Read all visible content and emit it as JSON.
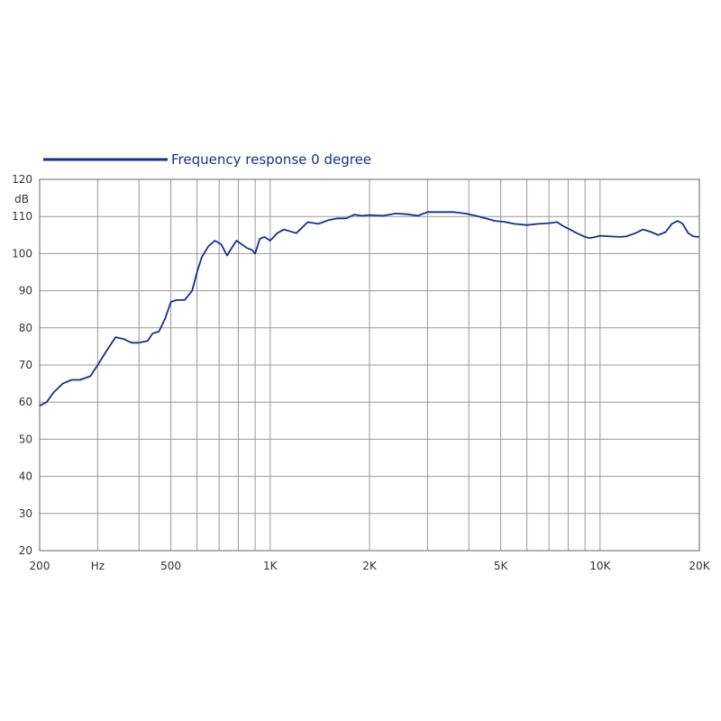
{
  "chart_data": {
    "type": "line",
    "legend_position": "top-left",
    "x_scale": "log",
    "xlim": [
      200,
      20000
    ],
    "ylim": [
      20,
      120
    ],
    "y_unit_label": "dB",
    "x_unit_label": "Hz",
    "grid": true,
    "x_ticks": [
      {
        "value": 200,
        "label": "200"
      },
      {
        "value": 300,
        "label": "Hz"
      },
      {
        "value": 500,
        "label": "500"
      },
      {
        "value": 1000,
        "label": "1K"
      },
      {
        "value": 2000,
        "label": "2K"
      },
      {
        "value": 5000,
        "label": "5K"
      },
      {
        "value": 10000,
        "label": "10K"
      },
      {
        "value": 20000,
        "label": "20K"
      }
    ],
    "x_gridlines": [
      200,
      300,
      400,
      500,
      600,
      700,
      800,
      900,
      1000,
      2000,
      3000,
      4000,
      5000,
      6000,
      7000,
      8000,
      9000,
      10000,
      20000
    ],
    "y_ticks": [
      20,
      30,
      40,
      50,
      60,
      70,
      80,
      90,
      100,
      110,
      120
    ],
    "series": [
      {
        "name": "Frequency response 0 degree",
        "color": "#1a2e8c",
        "points": [
          [
            200,
            59
          ],
          [
            210,
            60
          ],
          [
            220,
            62.5
          ],
          [
            235,
            65
          ],
          [
            250,
            66
          ],
          [
            265,
            66
          ],
          [
            285,
            67
          ],
          [
            300,
            70
          ],
          [
            320,
            74
          ],
          [
            340,
            77.5
          ],
          [
            360,
            77
          ],
          [
            380,
            76
          ],
          [
            400,
            76
          ],
          [
            425,
            76.5
          ],
          [
            440,
            78.5
          ],
          [
            460,
            79
          ],
          [
            480,
            82.5
          ],
          [
            500,
            87
          ],
          [
            520,
            87.5
          ],
          [
            550,
            87.5
          ],
          [
            580,
            90
          ],
          [
            600,
            95
          ],
          [
            620,
            99
          ],
          [
            650,
            102
          ],
          [
            680,
            103.5
          ],
          [
            710,
            102.5
          ],
          [
            740,
            99.5
          ],
          [
            770,
            102
          ],
          [
            790,
            103.5
          ],
          [
            820,
            102.5
          ],
          [
            850,
            101.5
          ],
          [
            880,
            101
          ],
          [
            900,
            100
          ],
          [
            930,
            104
          ],
          [
            960,
            104.5
          ],
          [
            1000,
            103.5
          ],
          [
            1050,
            105.5
          ],
          [
            1100,
            106.5
          ],
          [
            1150,
            106
          ],
          [
            1200,
            105.5
          ],
          [
            1300,
            108.5
          ],
          [
            1400,
            108
          ],
          [
            1500,
            109
          ],
          [
            1600,
            109.5
          ],
          [
            1700,
            109.5
          ],
          [
            1800,
            110.5
          ],
          [
            1900,
            110.2
          ],
          [
            2000,
            110.4
          ],
          [
            2200,
            110.2
          ],
          [
            2400,
            110.8
          ],
          [
            2600,
            110.6
          ],
          [
            2800,
            110.2
          ],
          [
            3000,
            111.2
          ],
          [
            3300,
            111.2
          ],
          [
            3600,
            111.2
          ],
          [
            3900,
            110.8
          ],
          [
            4200,
            110.2
          ],
          [
            4500,
            109.5
          ],
          [
            4800,
            108.8
          ],
          [
            5100,
            108.6
          ],
          [
            5500,
            108
          ],
          [
            6000,
            107.7
          ],
          [
            6500,
            108
          ],
          [
            7000,
            108.2
          ],
          [
            7400,
            108.5
          ],
          [
            7700,
            107.5
          ],
          [
            8100,
            106.5
          ],
          [
            8500,
            105.5
          ],
          [
            9000,
            104.5
          ],
          [
            9300,
            104.2
          ],
          [
            9700,
            104.5
          ],
          [
            10000,
            104.8
          ],
          [
            10800,
            104.6
          ],
          [
            11500,
            104.5
          ],
          [
            12000,
            104.6
          ],
          [
            12800,
            105.5
          ],
          [
            13500,
            106.5
          ],
          [
            14300,
            105.8
          ],
          [
            15000,
            105
          ],
          [
            15800,
            105.8
          ],
          [
            16500,
            108
          ],
          [
            17200,
            108.8
          ],
          [
            17800,
            108
          ],
          [
            18500,
            105.5
          ],
          [
            19200,
            104.6
          ],
          [
            20000,
            104.5
          ]
        ]
      }
    ]
  }
}
